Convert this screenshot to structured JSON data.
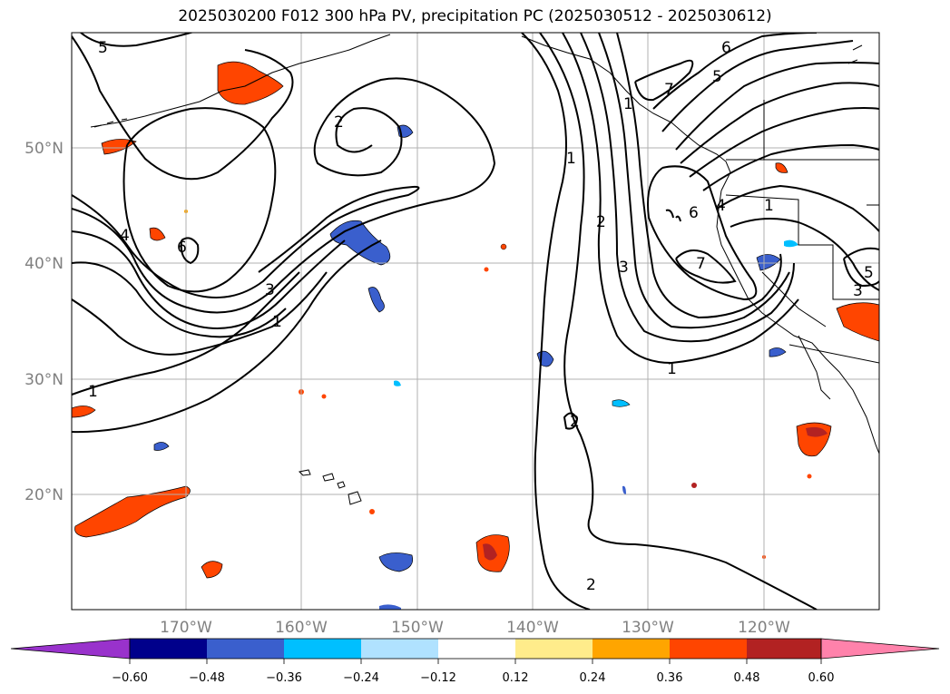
{
  "title": "2025030200 F012 300 hPa PV, precipitation PC (2025030512 - 2025030612)",
  "latitude_labels": [
    "50°N",
    "40°N",
    "30°N",
    "20°N"
  ],
  "longitude_labels": [
    "170°W",
    "160°W",
    "150°W",
    "140°W",
    "130°W",
    "120°W"
  ],
  "colorbar": {
    "tick_labels": [
      "−0.60",
      "−0.48",
      "−0.36",
      "−0.24",
      "−0.12",
      "0.12",
      "0.24",
      "0.36",
      "0.48",
      "0.60"
    ],
    "colors": [
      "#9932CC",
      "#00008B",
      "#3A5FCD",
      "#00BFFF",
      "#B0E2FF",
      "#FFFFFF",
      "#FFEC8B",
      "#FFA500",
      "#FF4500",
      "#B22222",
      "#FF82AB"
    ]
  },
  "contour_labels": [
    "5",
    "2",
    "4",
    "6",
    "3",
    "1",
    "1",
    "1",
    "2",
    "3",
    "1",
    "7",
    "6",
    "5",
    "6",
    "4",
    "7",
    "1",
    "2",
    "2",
    "1",
    "3",
    "5"
  ],
  "legend_colors": {
    "contour": "#000000",
    "grid": "#b0b0b0",
    "coast": "#000000"
  }
}
